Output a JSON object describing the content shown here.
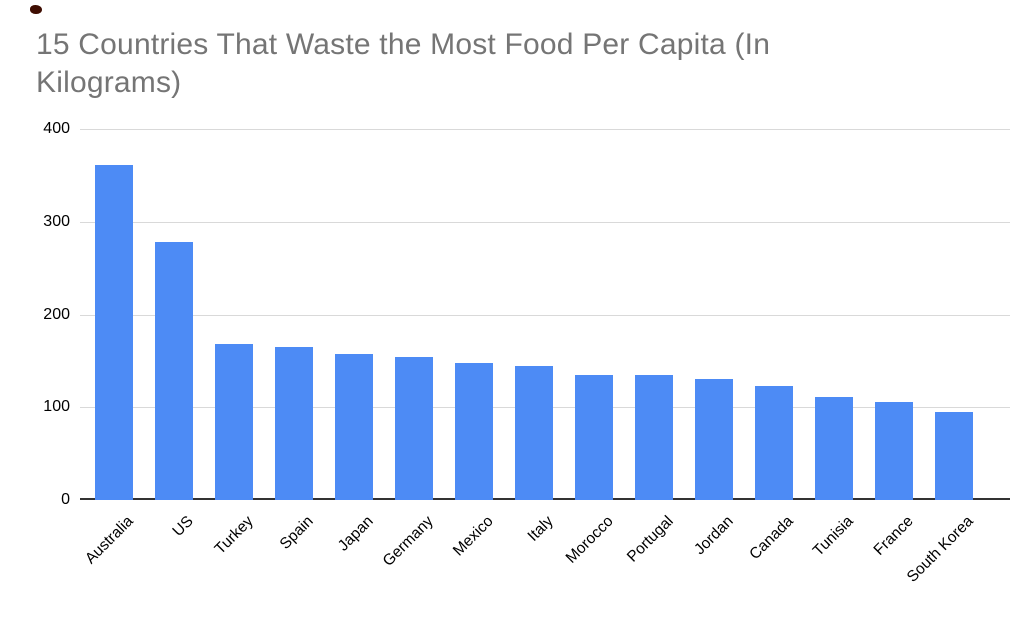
{
  "chart_data": {
    "type": "bar",
    "title": "15 Countries That Waste the Most Food Per Capita (In Kilograms)",
    "categories": [
      "Australia",
      "US",
      "Turkey",
      "Spain",
      "Japan",
      "Germany",
      "Mexico",
      "Italy",
      "Morocco",
      "Portugal",
      "Jordan",
      "Canada",
      "Tunisia",
      "France",
      "South Korea"
    ],
    "values": [
      361,
      278,
      168,
      165,
      157,
      154,
      148,
      145,
      135,
      135,
      130,
      123,
      111,
      106,
      95
    ],
    "xlabel": "",
    "ylabel": "",
    "ylim": [
      0,
      400
    ],
    "yticks": [
      0,
      100,
      200,
      300,
      400
    ],
    "grid": true,
    "legend": "none",
    "colors": {
      "bar": "#4d8bf5",
      "title": "#757575",
      "grid": "#d9d9d9",
      "baseline": "#333333",
      "tick_label": "#000000",
      "background": "#ffffff"
    }
  }
}
